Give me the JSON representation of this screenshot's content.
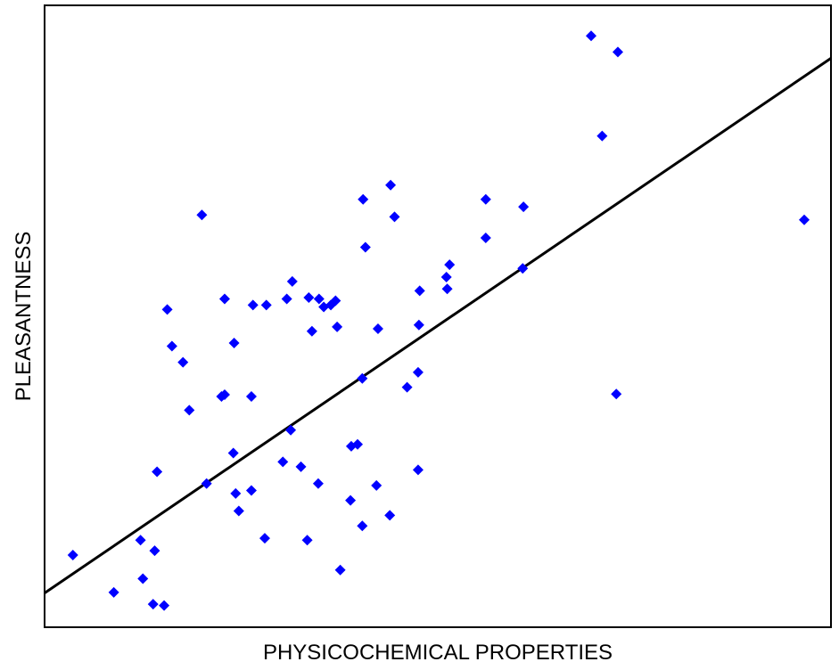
{
  "chart_data": {
    "type": "scatter",
    "title": "",
    "xlabel": "PHYSICOCHEMICAL PROPERTIES",
    "ylabel": "PLEASANTNESS",
    "xlim": [
      0,
      100
    ],
    "ylim": [
      0,
      100
    ],
    "grid": false,
    "show_ticks": false,
    "marker_color": "#0000ff",
    "line_color": "#000000",
    "series": [
      {
        "type": "scatter",
        "points": [
          [
            3.6,
            11.6
          ],
          [
            8.8,
            5.6
          ],
          [
            12.2,
            14.0
          ],
          [
            12.5,
            7.8
          ],
          [
            13.8,
            3.7
          ],
          [
            14.0,
            12.3
          ],
          [
            14.3,
            25.0
          ],
          [
            15.2,
            3.5
          ],
          [
            15.6,
            51.1
          ],
          [
            16.2,
            45.2
          ],
          [
            17.6,
            42.6
          ],
          [
            18.4,
            34.9
          ],
          [
            20.0,
            66.3
          ],
          [
            20.6,
            23.1
          ],
          [
            22.5,
            37.1
          ],
          [
            22.9,
            37.4
          ],
          [
            22.9,
            52.8
          ],
          [
            24.0,
            28.0
          ],
          [
            24.1,
            45.7
          ],
          [
            24.3,
            21.5
          ],
          [
            24.7,
            18.7
          ],
          [
            26.3,
            37.1
          ],
          [
            26.3,
            22.0
          ],
          [
            26.5,
            51.8
          ],
          [
            28.0,
            14.3
          ],
          [
            28.2,
            51.8
          ],
          [
            30.3,
            26.6
          ],
          [
            30.8,
            52.8
          ],
          [
            31.3,
            31.7
          ],
          [
            31.5,
            55.6
          ],
          [
            32.6,
            25.8
          ],
          [
            33.4,
            14.0
          ],
          [
            33.6,
            53.0
          ],
          [
            34.0,
            47.6
          ],
          [
            34.8,
            23.1
          ],
          [
            34.9,
            52.8
          ],
          [
            35.5,
            51.5
          ],
          [
            36.4,
            51.8
          ],
          [
            37.0,
            52.5
          ],
          [
            37.2,
            48.3
          ],
          [
            37.6,
            9.2
          ],
          [
            38.9,
            20.4
          ],
          [
            39.0,
            29.1
          ],
          [
            39.8,
            29.4
          ],
          [
            40.4,
            16.3
          ],
          [
            40.4,
            40.0
          ],
          [
            40.5,
            68.8
          ],
          [
            40.8,
            61.1
          ],
          [
            42.2,
            22.8
          ],
          [
            42.4,
            48.0
          ],
          [
            43.9,
            18.0
          ],
          [
            44.0,
            71.1
          ],
          [
            44.5,
            66.0
          ],
          [
            46.1,
            38.6
          ],
          [
            47.5,
            25.3
          ],
          [
            47.5,
            41.0
          ],
          [
            47.6,
            48.6
          ],
          [
            47.7,
            54.1
          ],
          [
            51.1,
            56.3
          ],
          [
            51.2,
            54.4
          ],
          [
            51.5,
            58.3
          ],
          [
            56.1,
            62.6
          ],
          [
            56.1,
            68.8
          ],
          [
            60.8,
            57.7
          ],
          [
            60.9,
            67.6
          ],
          [
            69.5,
            95.1
          ],
          [
            70.9,
            79.0
          ],
          [
            72.7,
            37.5
          ],
          [
            72.9,
            92.5
          ],
          [
            96.6,
            65.5
          ]
        ]
      },
      {
        "type": "line",
        "points": [
          [
            0,
            5.5
          ],
          [
            100,
            91.5
          ]
        ]
      }
    ]
  }
}
